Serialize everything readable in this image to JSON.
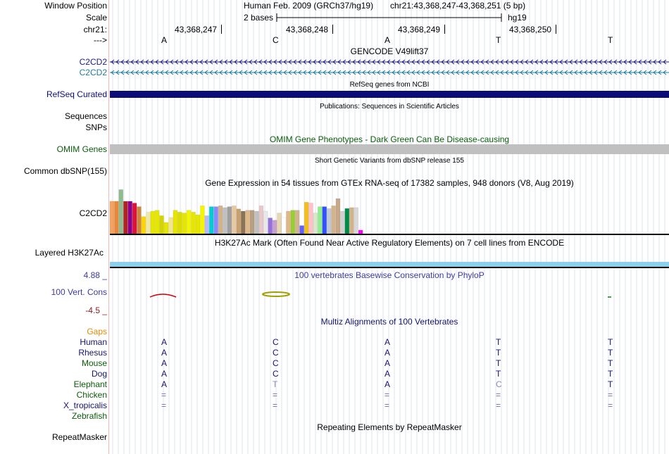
{
  "position": {
    "label": "Window Position",
    "assembly": "Human Feb. 2009 (GRCh37/hg19)",
    "range": "chr21:43,368,247-43,368,251 (5 bp)"
  },
  "scale": {
    "label": "Scale",
    "bases": "2 bases",
    "db": "hg19"
  },
  "ruler": {
    "label": "chr21:",
    "strand_label": "--->",
    "ticks": [
      "43,368,247",
      "43,368,248",
      "43,368,249",
      "43,368,250"
    ],
    "bases": [
      "A",
      "C",
      "A",
      "T",
      "T"
    ]
  },
  "gencode": {
    "title": "GENCODE V49lift37",
    "tracks": [
      {
        "label": "C2CD2",
        "color": "#1a1a8c"
      },
      {
        "label": "C2CD2",
        "color": "#1d7a9e"
      }
    ]
  },
  "refseq": {
    "title": "RefSeq genes from NCBI",
    "label": "RefSeq Curated",
    "color": "#0c0c78"
  },
  "publications": {
    "title": "Publications: Sequences in Scientific Articles",
    "sequences_label": "Sequences",
    "snps_label": "SNPs"
  },
  "omim": {
    "title": "OMIM Gene Phenotypes - Dark Green Can Be Disease-causing",
    "label": "OMIM Genes",
    "color": "#0a5c0a",
    "bar_color": "#c0c0c0"
  },
  "dbsnp": {
    "title": "Short Genetic Variants from dbSNP release 155",
    "label": "Common dbSNP(155)"
  },
  "gtex": {
    "title": "Gene Expression in 54 tissues from GTEx RNA-seq of 17382 samples, 948 donors (V8, Aug 2019)",
    "label": "C2CD2"
  },
  "h3k27ac": {
    "title": "H3K27Ac Mark (Often Found Near Active Regulatory Elements) on 7 cell lines from ENCODE",
    "label": "Layered H3K27Ac",
    "color": "#8ad0ef"
  },
  "conservation": {
    "title": "100 vertebrates Basewise Conservation by PhyloP",
    "label": "100 Vert. Cons",
    "max": "4.88 _",
    "min": "-4.5 _",
    "title_color": "#3b3b9e",
    "max_color": "#3b3b9e",
    "min_color": "#8b1a1a"
  },
  "multiz": {
    "title": "Multiz Alignments of 100 Vertebrates",
    "gaps_label": "Gaps",
    "gaps_color": "#e08a00",
    "species": [
      {
        "name": "Human",
        "color": "#14146e",
        "bases": [
          "A",
          "C",
          "A",
          "T",
          "T"
        ],
        "style": [
          "n",
          "n",
          "n",
          "n",
          "n"
        ]
      },
      {
        "name": "Rhesus",
        "color": "#14146e",
        "bases": [
          "A",
          "C",
          "A",
          "T",
          "T"
        ],
        "style": [
          "n",
          "n",
          "n",
          "n",
          "n"
        ]
      },
      {
        "name": "Mouse",
        "color": "#0a5c0a",
        "bases": [
          "A",
          "C",
          "A",
          "T",
          "T"
        ],
        "style": [
          "n",
          "n",
          "n",
          "n",
          "n"
        ]
      },
      {
        "name": "Dog",
        "color": "#14146e",
        "bases": [
          "A",
          "C",
          "A",
          "T",
          "T"
        ],
        "style": [
          "n",
          "n",
          "n",
          "n",
          "n"
        ]
      },
      {
        "name": "Elephant",
        "color": "#0a5c0a",
        "bases": [
          "A",
          "T",
          "A",
          "C",
          "T"
        ],
        "style": [
          "n",
          "m",
          "n",
          "m",
          "n"
        ]
      },
      {
        "name": "Chicken",
        "color": "#0a5c0a",
        "bases": [
          "=",
          "=",
          "=",
          "=",
          "="
        ],
        "style": [
          "g",
          "g",
          "g",
          "g",
          "g"
        ]
      },
      {
        "name": "X_tropicalis",
        "color": "#14146e",
        "bases": [
          "=",
          "=",
          "=",
          "=",
          "="
        ],
        "style": [
          "g",
          "g",
          "g",
          "g",
          "g"
        ]
      },
      {
        "name": "Zebrafish",
        "color": "#0a5c0a",
        "bases": [
          "",
          "",
          "",
          "",
          ""
        ],
        "style": [
          "n",
          "n",
          "n",
          "n",
          "n"
        ]
      }
    ]
  },
  "repeatmasker": {
    "title": "Repeating Elements by RepeatMasker",
    "label": "RepeatMasker"
  }
}
